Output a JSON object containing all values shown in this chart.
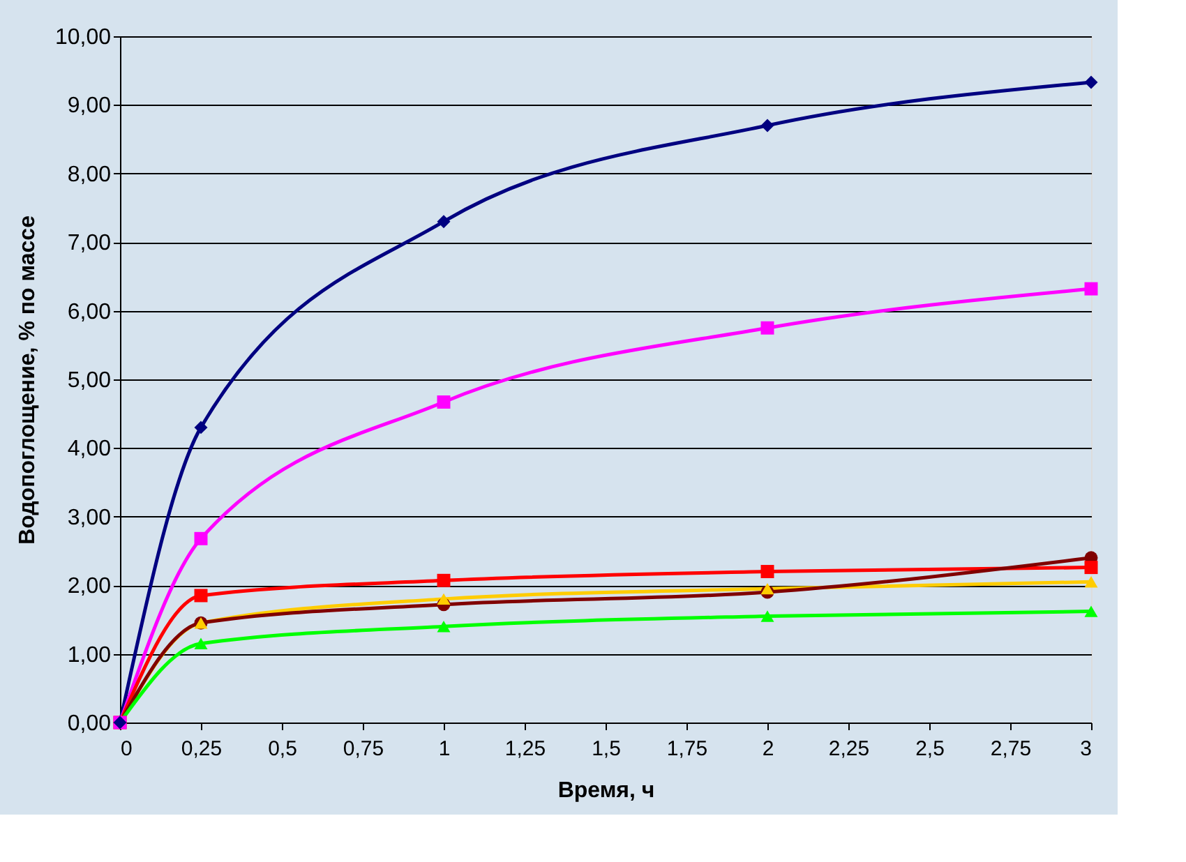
{
  "chart_data": {
    "type": "line",
    "xlabel": "Время, ч",
    "ylabel": "Водопоглощение, % по массе",
    "xlim": [
      0,
      3
    ],
    "ylim": [
      0,
      10
    ],
    "xticks": [
      0,
      {
        "value": 0.25,
        "label": "0,25"
      },
      {
        "value": 0.5,
        "label": "0,5"
      },
      {
        "value": 0.75,
        "label": "0,75"
      },
      1,
      {
        "value": 1.25,
        "label": "1,25"
      },
      {
        "value": 1.5,
        "label": "1,5"
      },
      {
        "value": 1.75,
        "label": "1,75"
      },
      2,
      {
        "value": 2.25,
        "label": "2,25"
      },
      {
        "value": 2.5,
        "label": "2,5"
      },
      {
        "value": 2.75,
        "label": "2,75"
      },
      3
    ],
    "yticks": [
      {
        "value": 0,
        "label": "0,00"
      },
      {
        "value": 1,
        "label": "1,00"
      },
      {
        "value": 2,
        "label": "2,00"
      },
      {
        "value": 3,
        "label": "3,00"
      },
      {
        "value": 4,
        "label": "4,00"
      },
      {
        "value": 5,
        "label": "5,00"
      },
      {
        "value": 6,
        "label": "6,00"
      },
      {
        "value": 7,
        "label": "7,00"
      },
      {
        "value": 8,
        "label": "8,00"
      },
      {
        "value": 9,
        "label": "9,00"
      },
      {
        "value": 10,
        "label": "10,00"
      }
    ],
    "grid": "y",
    "line_style": "solid",
    "x": [
      0,
      0.25,
      1,
      2,
      3
    ],
    "series": [
      {
        "color": "#000080",
        "marker": "diamond",
        "values": [
          0,
          4.3,
          7.3,
          8.7,
          9.33
        ]
      },
      {
        "color": "#ff00ff",
        "marker": "square",
        "values": [
          0,
          2.68,
          4.67,
          5.75,
          6.32
        ]
      },
      {
        "color": "#ff0000",
        "marker": "square",
        "values": [
          0,
          1.85,
          2.07,
          2.2,
          2.26
        ]
      },
      {
        "color": "#ffcc00",
        "marker": "triangle",
        "values": [
          0,
          1.45,
          1.8,
          1.95,
          2.05
        ]
      },
      {
        "color": "#800000",
        "marker": "circle",
        "values": [
          0,
          1.45,
          1.72,
          1.9,
          2.4
        ]
      },
      {
        "color": "#00ff00",
        "marker": "triangle",
        "values": [
          0,
          1.15,
          1.4,
          1.55,
          1.62
        ]
      }
    ]
  }
}
